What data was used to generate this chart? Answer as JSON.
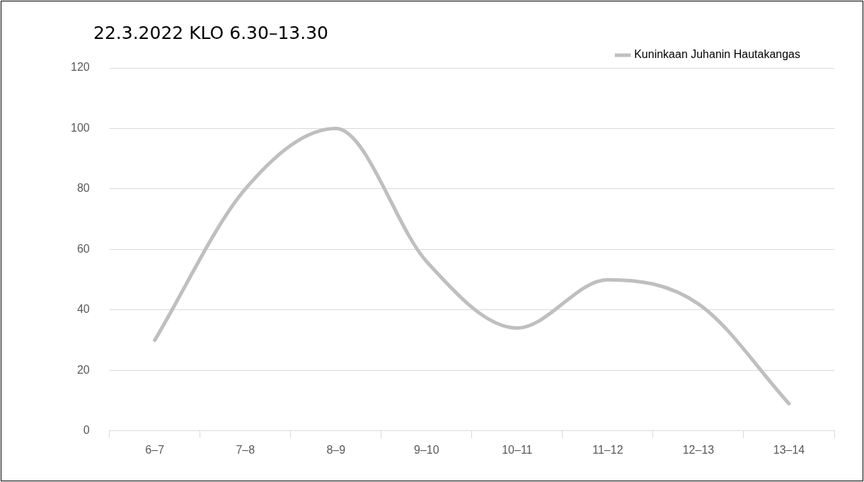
{
  "chart_data": {
    "type": "line",
    "title": "22.3.2022 KLO 6.30–13.30",
    "categories": [
      "6–7",
      "7–8",
      "8–9",
      "9–10",
      "10–11",
      "11–12",
      "12–13",
      "13–14"
    ],
    "series": [
      {
        "name": "Kuninkaan Juhanin Hautakangas",
        "color": "#bfbfbf",
        "values": [
          30,
          80,
          100,
          56,
          34,
          50,
          42,
          9
        ]
      }
    ],
    "ylim": [
      0,
      120
    ],
    "yticks": [
      0,
      20,
      40,
      60,
      80,
      100,
      120
    ],
    "grid": "y",
    "legend": "top right",
    "marker": "none",
    "line_style": "solid"
  }
}
